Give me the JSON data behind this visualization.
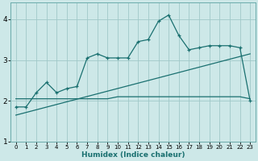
{
  "xlabel": "Humidex (Indice chaleur)",
  "bg_color": "#cde8e8",
  "grid_color": "#a0c8c8",
  "line_color": "#1a7070",
  "spine_color": "#6aabab",
  "xlim": [
    -0.5,
    23.5
  ],
  "ylim": [
    1.0,
    4.4
  ],
  "yticks": [
    1,
    2,
    3,
    4
  ],
  "xticks": [
    0,
    1,
    2,
    3,
    4,
    5,
    6,
    7,
    8,
    9,
    10,
    11,
    12,
    13,
    14,
    15,
    16,
    17,
    18,
    19,
    20,
    21,
    22,
    23
  ],
  "line1_x": [
    0,
    1,
    2,
    3,
    4,
    5,
    6,
    7,
    8,
    9,
    10,
    11,
    12,
    13,
    14,
    15,
    16,
    17,
    18,
    19,
    20,
    21,
    22,
    23
  ],
  "line1_y": [
    1.85,
    1.85,
    2.2,
    2.45,
    2.2,
    2.3,
    2.35,
    3.05,
    3.15,
    3.05,
    3.05,
    3.05,
    3.45,
    3.5,
    3.95,
    4.1,
    3.6,
    3.25,
    3.3,
    3.35,
    3.35,
    3.35,
    3.3,
    2.0
  ],
  "line2_x": [
    0,
    1,
    2,
    3,
    4,
    5,
    6,
    7,
    8,
    9,
    10,
    11,
    12,
    13,
    14,
    15,
    16,
    17,
    18,
    19,
    20,
    21,
    22,
    23
  ],
  "line2_y": [
    2.05,
    2.05,
    2.05,
    2.05,
    2.05,
    2.05,
    2.05,
    2.05,
    2.05,
    2.05,
    2.1,
    2.1,
    2.1,
    2.1,
    2.1,
    2.1,
    2.1,
    2.1,
    2.1,
    2.1,
    2.1,
    2.1,
    2.1,
    2.05
  ],
  "line3_x": [
    0,
    23
  ],
  "line3_y": [
    1.65,
    3.15
  ]
}
